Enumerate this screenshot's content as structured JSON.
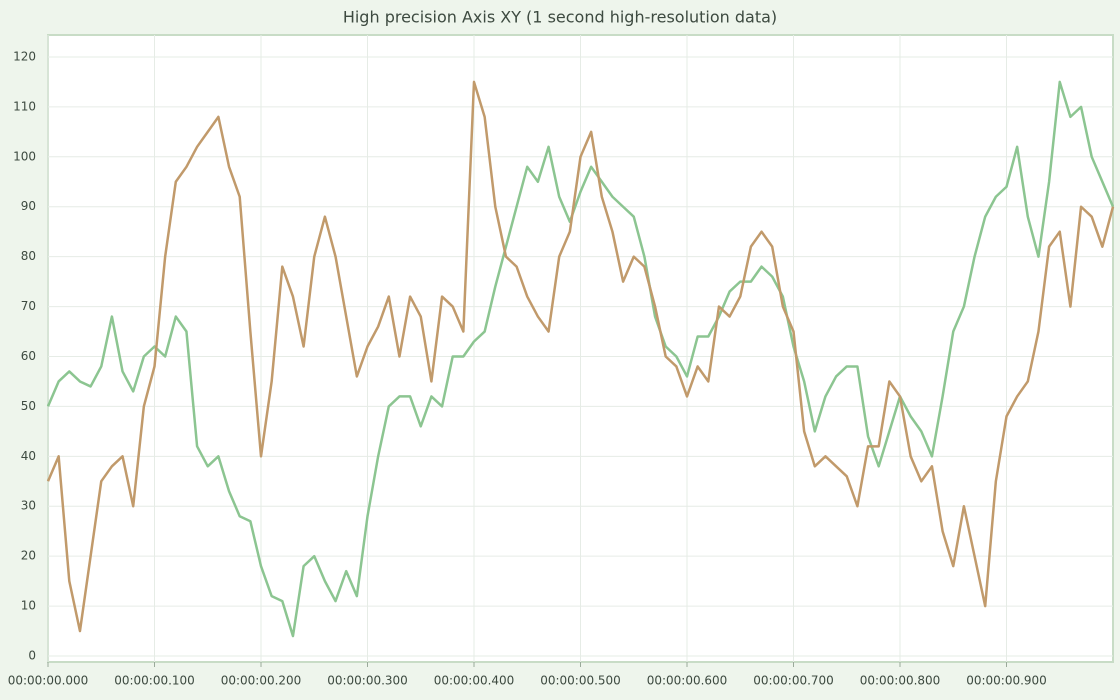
{
  "chart_data": {
    "type": "line",
    "title": "High precision Axis XY (1 second high-resolution data)",
    "x": [
      0,
      0.01,
      0.02,
      0.03,
      0.04,
      0.05,
      0.06,
      0.07,
      0.08,
      0.09,
      0.1,
      0.11,
      0.12,
      0.13,
      0.14,
      0.15,
      0.16,
      0.17,
      0.18,
      0.19,
      0.2,
      0.21,
      0.22,
      0.23,
      0.24,
      0.25,
      0.26,
      0.27,
      0.28,
      0.29,
      0.3,
      0.31,
      0.32,
      0.33,
      0.34,
      0.35,
      0.36,
      0.37,
      0.38,
      0.39,
      0.4,
      0.41,
      0.42,
      0.43,
      0.44,
      0.45,
      0.46,
      0.47,
      0.48,
      0.49,
      0.5,
      0.51,
      0.52,
      0.53,
      0.54,
      0.55,
      0.56,
      0.57,
      0.58,
      0.59,
      0.6,
      0.61,
      0.62,
      0.63,
      0.64,
      0.65,
      0.66,
      0.67,
      0.68,
      0.69,
      0.7,
      0.71,
      0.72,
      0.73,
      0.74,
      0.75,
      0.76,
      0.77,
      0.78,
      0.79,
      0.8,
      0.81,
      0.82,
      0.83,
      0.84,
      0.85,
      0.86,
      0.87,
      0.88,
      0.89,
      0.9,
      0.91,
      0.92,
      0.93,
      0.94,
      0.95,
      0.96,
      0.97,
      0.98,
      0.99,
      1
    ],
    "series": [
      {
        "color": "#8cc591",
        "values": [
          50,
          55,
          57,
          55,
          54,
          58,
          68,
          57,
          53,
          60,
          62,
          60,
          68,
          65,
          42,
          38,
          40,
          33,
          28,
          27,
          18,
          12,
          11,
          4,
          18,
          20,
          15,
          11,
          17,
          12,
          28,
          40,
          50,
          52,
          52,
          46,
          52,
          50,
          60,
          60,
          63,
          65,
          74,
          82,
          90,
          98,
          95,
          102,
          92,
          87,
          93,
          98,
          95,
          92,
          90,
          88,
          80,
          68,
          62,
          60,
          56,
          64,
          64,
          68,
          73,
          75,
          75,
          78,
          76,
          72,
          62,
          55,
          45,
          52,
          56,
          58,
          58,
          44,
          38,
          45,
          52,
          48,
          45,
          40,
          52,
          65,
          70,
          80,
          88,
          92,
          94,
          102,
          88,
          80,
          95,
          115,
          108,
          110,
          100,
          95,
          90
        ]
      },
      {
        "color": "#c19a6b",
        "values": [
          35,
          40,
          15,
          5,
          20,
          35,
          38,
          40,
          30,
          50,
          58,
          80,
          95,
          98,
          102,
          105,
          108,
          98,
          92,
          65,
          40,
          55,
          78,
          72,
          62,
          80,
          88,
          80,
          68,
          56,
          62,
          66,
          72,
          60,
          72,
          68,
          55,
          72,
          70,
          65,
          115,
          108,
          90,
          80,
          78,
          72,
          68,
          65,
          80,
          85,
          100,
          105,
          92,
          85,
          75,
          80,
          78,
          70,
          60,
          58,
          52,
          58,
          55,
          70,
          68,
          72,
          82,
          85,
          82,
          70,
          65,
          45,
          38,
          40,
          38,
          36,
          30,
          42,
          42,
          55,
          52,
          40,
          35,
          38,
          25,
          18,
          30,
          20,
          10,
          35,
          48,
          52,
          55,
          65,
          82,
          85,
          70,
          90,
          88,
          82,
          90
        ]
      }
    ],
    "xlim": [
      0,
      1
    ],
    "ylim": [
      -1.2,
      124.4
    ],
    "xticks": [
      {
        "value": 0,
        "label": "00:00:00.000"
      },
      {
        "value": 0.1,
        "label": "00:00:00.100"
      },
      {
        "value": 0.2,
        "label": "00:00:00.200"
      },
      {
        "value": 0.3,
        "label": "00:00:00.300"
      },
      {
        "value": 0.4,
        "label": "00:00:00.400"
      },
      {
        "value": 0.5,
        "label": "00:00:00.500"
      },
      {
        "value": 0.6,
        "label": "00:00:00.600"
      },
      {
        "value": 0.7,
        "label": "00:00:00.700"
      },
      {
        "value": 0.8,
        "label": "00:00:00.800"
      },
      {
        "value": 0.9,
        "label": "00:00:00.900"
      }
    ],
    "yticks": [
      0,
      10,
      20,
      30,
      40,
      50,
      60,
      70,
      80,
      90,
      100,
      110,
      120
    ],
    "grid": true
  }
}
